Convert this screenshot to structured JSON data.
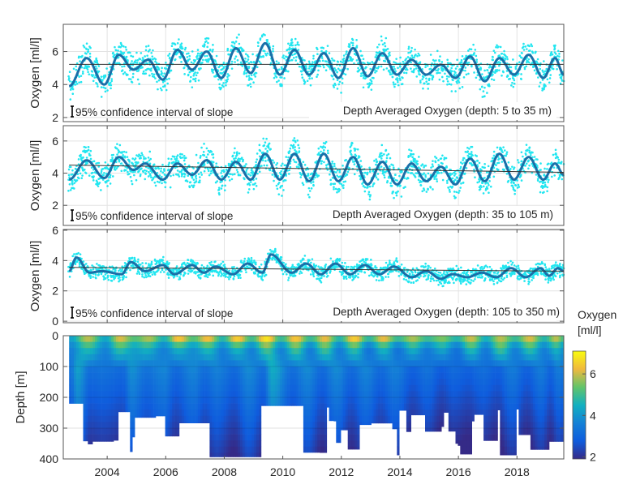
{
  "chart_data": [
    {
      "type": "line",
      "ylabel": "Oxygen [ml/l]",
      "ylim": [
        1.75,
        7.65
      ],
      "yticks": [
        2,
        4,
        6
      ],
      "xlim": [
        2002.5,
        2019.6
      ],
      "grid": true,
      "legend_text": "95% confidence interval of slope",
      "annotation": "Depth Averaged Oxygen (depth: 5 to 35 m)",
      "trend": [
        [
          2002.7,
          5.22
        ],
        [
          2019.6,
          5.22
        ]
      ],
      "smooth_extrema": [
        [
          2002.7,
          3.9
        ],
        [
          2003.3,
          5.6
        ],
        [
          2003.9,
          4.0
        ],
        [
          2004.4,
          5.8
        ],
        [
          2004.9,
          4.9
        ],
        [
          2005.4,
          5.5
        ],
        [
          2005.9,
          4.3
        ],
        [
          2006.4,
          6.1
        ],
        [
          2006.9,
          4.9
        ],
        [
          2007.4,
          6.0
        ],
        [
          2007.9,
          4.4
        ],
        [
          2008.4,
          6.2
        ],
        [
          2008.9,
          4.7
        ],
        [
          2009.4,
          6.5
        ],
        [
          2009.9,
          4.6
        ],
        [
          2010.4,
          6.1
        ],
        [
          2010.9,
          4.6
        ],
        [
          2011.4,
          5.9
        ],
        [
          2011.9,
          4.4
        ],
        [
          2012.4,
          6.2
        ],
        [
          2012.9,
          4.5
        ],
        [
          2013.4,
          5.9
        ],
        [
          2013.9,
          4.6
        ],
        [
          2014.4,
          5.5
        ],
        [
          2014.9,
          4.6
        ],
        [
          2015.4,
          5.2
        ],
        [
          2015.9,
          4.4
        ],
        [
          2016.4,
          5.7
        ],
        [
          2016.9,
          4.2
        ],
        [
          2017.4,
          5.6
        ],
        [
          2017.9,
          4.6
        ],
        [
          2018.4,
          5.8
        ],
        [
          2018.9,
          4.4
        ],
        [
          2019.3,
          5.6
        ],
        [
          2019.6,
          4.6
        ]
      ],
      "point_color": "#22e6f0",
      "curve_color": "#1a6fa8"
    },
    {
      "type": "line",
      "ylabel": "Oxygen [ml/l]",
      "ylim": [
        0.75,
        6.95
      ],
      "yticks": [
        2,
        4,
        6
      ],
      "xlim": [
        2002.5,
        2019.6
      ],
      "grid": true,
      "legend_text": "95% confidence interval of slope",
      "annotation": "Depth Averaged Oxygen (depth: 35 to 105 m)",
      "trend": [
        [
          2002.7,
          4.5
        ],
        [
          2019.6,
          4.05
        ]
      ],
      "smooth_extrema": [
        [
          2002.7,
          3.6
        ],
        [
          2003.3,
          4.8
        ],
        [
          2003.9,
          3.7
        ],
        [
          2004.4,
          5.0
        ],
        [
          2004.9,
          4.2
        ],
        [
          2005.3,
          4.6
        ],
        [
          2005.9,
          3.6
        ],
        [
          2006.4,
          4.6
        ],
        [
          2006.9,
          3.9
        ],
        [
          2007.4,
          4.8
        ],
        [
          2007.9,
          3.6
        ],
        [
          2008.4,
          4.7
        ],
        [
          2008.9,
          3.6
        ],
        [
          2009.4,
          5.2
        ],
        [
          2009.9,
          3.6
        ],
        [
          2010.4,
          5.2
        ],
        [
          2010.9,
          3.5
        ],
        [
          2011.4,
          5.2
        ],
        [
          2011.9,
          3.5
        ],
        [
          2012.4,
          5.0
        ],
        [
          2012.9,
          3.3
        ],
        [
          2013.4,
          4.7
        ],
        [
          2013.9,
          3.3
        ],
        [
          2014.4,
          4.6
        ],
        [
          2014.9,
          3.5
        ],
        [
          2015.4,
          4.4
        ],
        [
          2015.9,
          3.3
        ],
        [
          2016.4,
          4.9
        ],
        [
          2016.9,
          3.5
        ],
        [
          2017.4,
          5.2
        ],
        [
          2017.9,
          3.6
        ],
        [
          2018.4,
          5.0
        ],
        [
          2018.9,
          3.6
        ],
        [
          2019.3,
          4.6
        ],
        [
          2019.6,
          3.9
        ]
      ],
      "point_color": "#22e6f0",
      "curve_color": "#1a6fa8"
    },
    {
      "type": "line",
      "ylabel": "Oxygen [ml/l]",
      "ylim": [
        -0.1,
        6.05
      ],
      "yticks": [
        0,
        2,
        4,
        6
      ],
      "xlim": [
        2002.5,
        2019.6
      ],
      "grid": true,
      "legend_text": "95% confidence interval of slope",
      "annotation": "Depth Averaged Oxygen (depth: 105 to 350 m)",
      "trend": [
        [
          2002.7,
          3.55
        ],
        [
          2019.6,
          3.3
        ]
      ],
      "smooth_extrema": [
        [
          2002.7,
          3.3
        ],
        [
          2002.95,
          4.2
        ],
        [
          2003.4,
          3.2
        ],
        [
          2003.8,
          3.3
        ],
        [
          2004.5,
          3.1
        ],
        [
          2004.8,
          3.9
        ],
        [
          2005.3,
          3.3
        ],
        [
          2005.9,
          3.7
        ],
        [
          2006.3,
          3.1
        ],
        [
          2006.9,
          3.7
        ],
        [
          2007.3,
          3.2
        ],
        [
          2007.7,
          3.6
        ],
        [
          2008.3,
          3.1
        ],
        [
          2008.8,
          3.8
        ],
        [
          2009.3,
          3.2
        ],
        [
          2009.6,
          4.4
        ],
        [
          2010.3,
          3.2
        ],
        [
          2010.8,
          3.8
        ],
        [
          2011.3,
          3.1
        ],
        [
          2011.8,
          3.8
        ],
        [
          2012.3,
          3.1
        ],
        [
          2012.8,
          3.7
        ],
        [
          2013.3,
          3.1
        ],
        [
          2013.8,
          3.6
        ],
        [
          2014.4,
          2.9
        ],
        [
          2014.9,
          3.3
        ],
        [
          2015.4,
          2.8
        ],
        [
          2015.8,
          3.1
        ],
        [
          2016.3,
          2.9
        ],
        [
          2016.8,
          3.2
        ],
        [
          2017.3,
          2.9
        ],
        [
          2017.8,
          3.5
        ],
        [
          2018.3,
          2.9
        ],
        [
          2018.8,
          3.5
        ],
        [
          2019.1,
          3.0
        ],
        [
          2019.4,
          3.5
        ],
        [
          2019.6,
          3.3
        ]
      ],
      "point_color": "#22e6f0",
      "curve_color": "#1a6fa8"
    },
    {
      "type": "heatmap",
      "ylabel": "Depth [m]",
      "ylim": [
        400,
        0
      ],
      "yticks": [
        0,
        100,
        200,
        300,
        400
      ],
      "xlim": [
        2002.5,
        2019.6
      ],
      "xticks": [
        2004,
        2006,
        2008,
        2010,
        2012,
        2014,
        2016,
        2018
      ],
      "colorbar": {
        "title_line1": "Oxygen",
        "title_line2": "[ml/l]",
        "range": [
          1.9,
          7.1
        ],
        "ticks": [
          2,
          4,
          6
        ],
        "colormap": "parula",
        "colors": [
          "#352a87",
          "#0f5cdd",
          "#1481d6",
          "#12b0c0",
          "#62c46a",
          "#f0b93e",
          "#f9fb0e"
        ]
      }
    }
  ]
}
